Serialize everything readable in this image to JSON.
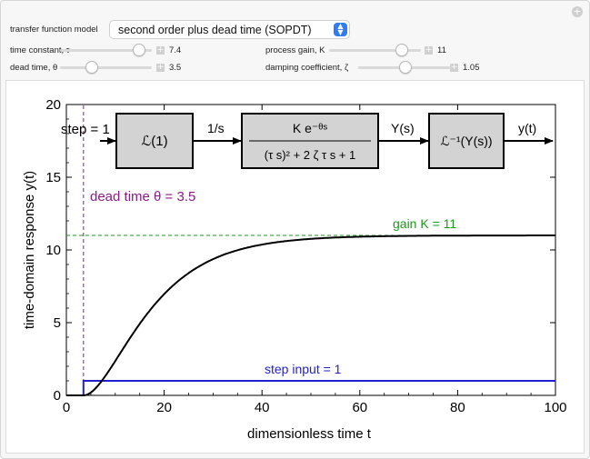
{
  "controls": {
    "model_label": "transfer function model",
    "model_value": "second order plus dead time (SOPDT)",
    "sliders": [
      {
        "label": "time constant, τ",
        "value": "7.4",
        "level": 0.37
      },
      {
        "label": "process gain, K",
        "value": "11",
        "level": 0.52
      },
      {
        "label": "dead time, θ",
        "value": "3.5",
        "level": 0.2
      },
      {
        "label": "damping coefficient, ζ",
        "value": "1.05",
        "level": 0.38
      }
    ]
  },
  "icons": {
    "corner": "plus-icon",
    "dropdown": "dropdown-arrows-icon",
    "slider_step": "plus-icon"
  },
  "diagram": {
    "step_label": "step = 1",
    "block1": "ℒ(1)",
    "arrow1": "1/s",
    "block2_num": "K e⁻ᶿˢ",
    "block2_den": "(τ s)² + 2 ζ τ s + 1",
    "arrow2": "Y(s)",
    "block3": "ℒ⁻¹(Y(s))",
    "arrow3": "y(t)"
  },
  "chart_data": {
    "type": "line",
    "xlabel": "dimensionless time t",
    "ylabel": "time-domain response y(t)",
    "xlim": [
      0,
      100
    ],
    "ylim": [
      0,
      20
    ],
    "xticks": [
      "0",
      "20",
      "40",
      "60",
      "80",
      "100"
    ],
    "yticks": [
      "0",
      "5",
      "10",
      "15",
      "20"
    ],
    "params": {
      "tau": 7.4,
      "K": 11,
      "theta": 3.5,
      "zeta": 1.05
    },
    "annotations": {
      "dead_time": "dead time θ = 3.5",
      "gain": "gain K = 11",
      "step_input": "step input = 1"
    },
    "colors": {
      "response": "#000000",
      "step": "#1f1fd0",
      "dead_time": "#8b1a8b",
      "gain": "#1a9a1a"
    }
  }
}
